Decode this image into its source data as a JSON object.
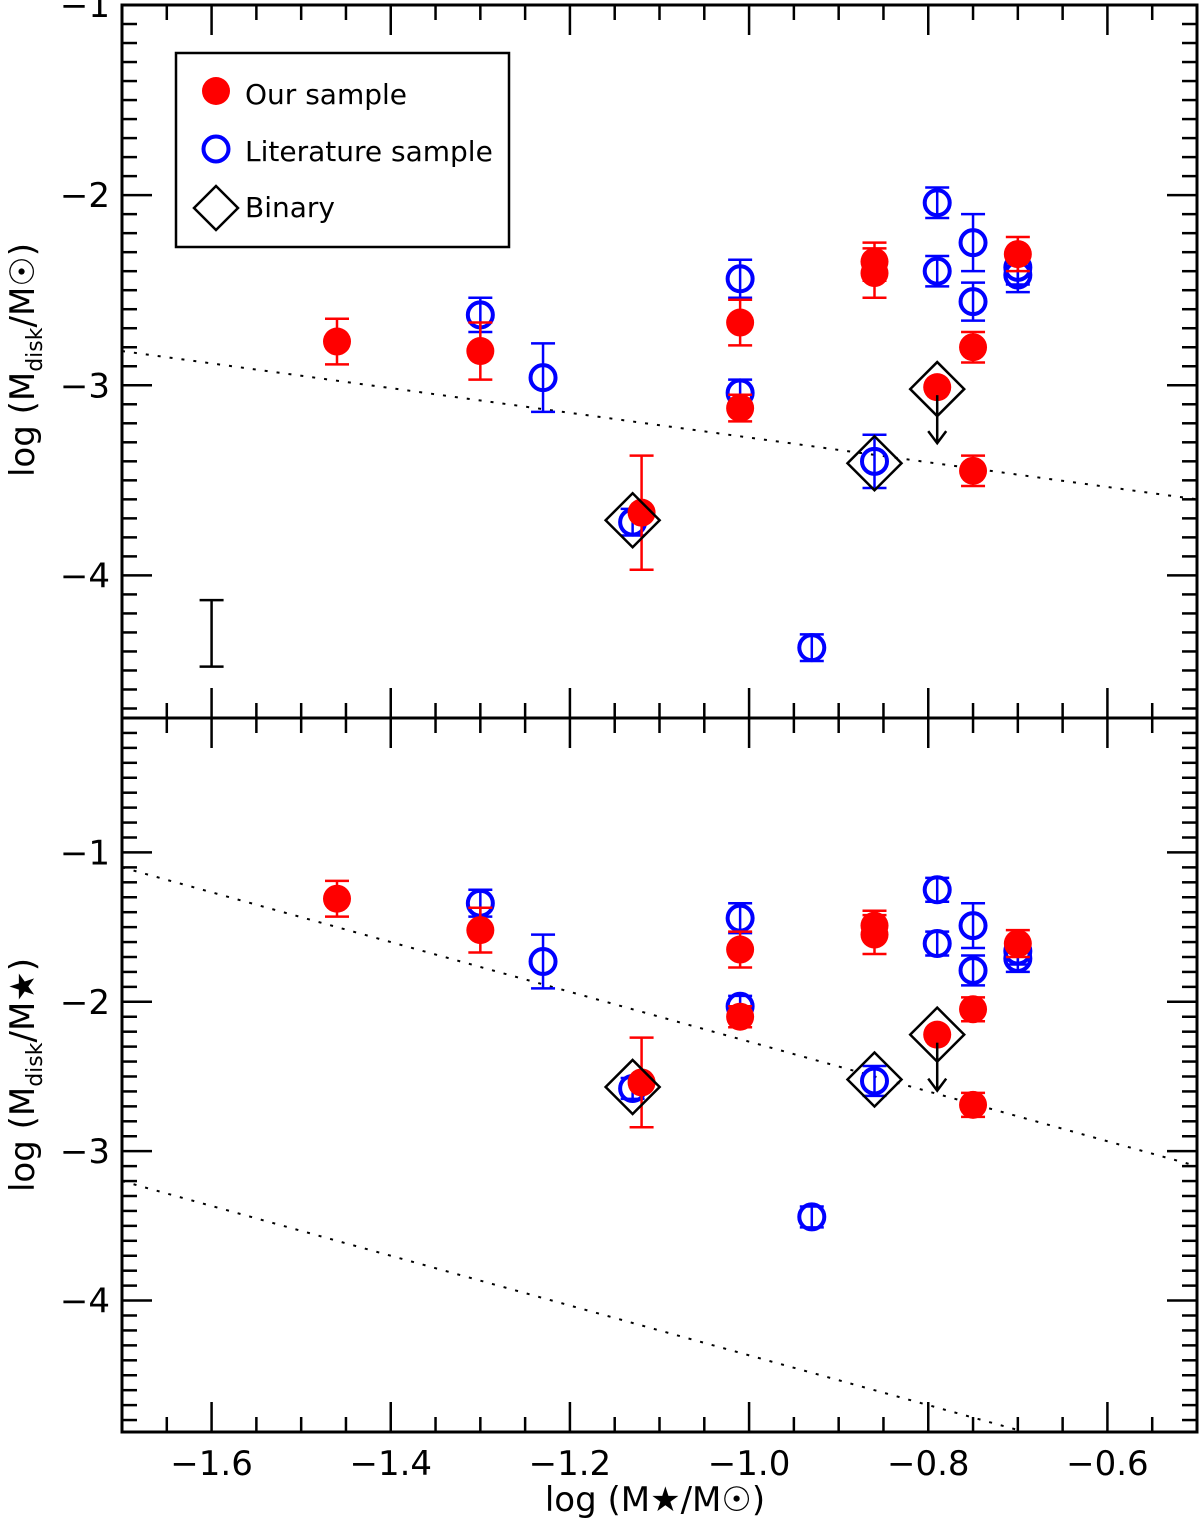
{
  "colors": {
    "our": "#ff0000",
    "lit": "#0000ff",
    "binary": "#000000",
    "frame": "#000000"
  },
  "chart_data": [
    {
      "id": "top",
      "type": "scatter",
      "title": "",
      "xlabel": "log (M★/M☉)",
      "ylabel_parts": {
        "main": "log (M",
        "sub": "disk",
        "tail": "/M☉)"
      },
      "xlim": [
        -1.7,
        -0.5
      ],
      "ylim": [
        -4.75,
        -1.0
      ],
      "yticks": [
        -4,
        -3,
        -2,
        -1
      ],
      "ytick_labels": [
        "−4",
        "−3",
        "−2",
        "−1"
      ],
      "legend": [
        "Our sample",
        "Literature sample",
        "Binary"
      ],
      "series": [
        {
          "name": "Our sample",
          "points": [
            {
              "x": -1.46,
              "y": -2.77,
              "err": 0.12
            },
            {
              "x": -1.3,
              "y": -2.82,
              "err": 0.15
            },
            {
              "x": -1.12,
              "y": -3.67,
              "err": 0.3
            },
            {
              "x": -1.01,
              "y": -2.67,
              "err": 0.12
            },
            {
              "x": -1.01,
              "y": -3.12,
              "err": 0.07
            },
            {
              "x": -0.86,
              "y": -2.35,
              "err": 0.1
            },
            {
              "x": -0.86,
              "y": -2.41,
              "err": 0.13
            },
            {
              "x": -0.79,
              "y": -3.01,
              "err": 0.0,
              "upper_limit": true
            },
            {
              "x": -0.75,
              "y": -2.8,
              "err": 0.08
            },
            {
              "x": -0.75,
              "y": -3.45,
              "err": 0.08
            },
            {
              "x": -0.7,
              "y": -2.31,
              "err": 0.09
            }
          ]
        },
        {
          "name": "Literature sample",
          "points": [
            {
              "x": -1.3,
              "y": -2.63,
              "err": 0.09
            },
            {
              "x": -1.23,
              "y": -2.96,
              "err": 0.18
            },
            {
              "x": -1.13,
              "y": -3.72,
              "err": 0.07
            },
            {
              "x": -1.01,
              "y": -2.44,
              "err": 0.1
            },
            {
              "x": -1.01,
              "y": -3.04,
              "err": 0.07
            },
            {
              "x": -0.93,
              "y": -4.38,
              "err": 0.07
            },
            {
              "x": -0.86,
              "y": -3.4,
              "err": 0.14
            },
            {
              "x": -0.79,
              "y": -2.04,
              "err": 0.08
            },
            {
              "x": -0.79,
              "y": -2.4,
              "err": 0.08
            },
            {
              "x": -0.75,
              "y": -2.25,
              "err": 0.15
            },
            {
              "x": -0.75,
              "y": -2.56,
              "err": 0.1
            },
            {
              "x": -0.7,
              "y": -2.38,
              "err": 0.09
            },
            {
              "x": -0.7,
              "y": -2.42,
              "err": 0.09
            }
          ]
        }
      ],
      "binaries": [
        {
          "x": -1.13,
          "y": -3.71
        },
        {
          "x": -0.86,
          "y": -3.41
        },
        {
          "x": -0.79,
          "y": -3.02
        }
      ],
      "dotted_lines": [
        {
          "x1": -1.7,
          "y1": -2.82,
          "x2": -0.5,
          "y2": -3.6
        }
      ],
      "typical_error": {
        "x": -1.6,
        "y_low": -4.48,
        "y_high": -4.13
      }
    },
    {
      "id": "bottom",
      "type": "scatter",
      "title": "",
      "xlabel": "log (M★/M☉)",
      "ylabel_parts": {
        "main": "log (M",
        "sub": "disk",
        "tail": "/M★)"
      },
      "xlim": [
        -1.7,
        -0.5
      ],
      "ylim": [
        -4.88,
        -0.1
      ],
      "yticks": [
        -4,
        -3,
        -2,
        -1
      ],
      "ytick_labels": [
        "−4",
        "−3",
        "−2",
        "−1"
      ],
      "xticks": [
        -1.6,
        -1.4,
        -1.2,
        -1.0,
        -0.8,
        -0.6
      ],
      "xtick_labels": [
        "−1.6",
        "−1.4",
        "−1.2",
        "−1.0",
        "−0.8",
        "−0.6"
      ],
      "series": [
        {
          "name": "Our sample",
          "points": [
            {
              "x": -1.46,
              "y": -1.31,
              "err": 0.12
            },
            {
              "x": -1.3,
              "y": -1.52,
              "err": 0.15
            },
            {
              "x": -1.12,
              "y": -2.54,
              "err": 0.3
            },
            {
              "x": -1.01,
              "y": -1.65,
              "err": 0.12
            },
            {
              "x": -1.01,
              "y": -2.1,
              "err": 0.07
            },
            {
              "x": -0.86,
              "y": -1.49,
              "err": 0.1
            },
            {
              "x": -0.86,
              "y": -1.55,
              "err": 0.13
            },
            {
              "x": -0.79,
              "y": -2.22,
              "err": 0.0,
              "upper_limit": true
            },
            {
              "x": -0.75,
              "y": -2.05,
              "err": 0.08
            },
            {
              "x": -0.75,
              "y": -2.69,
              "err": 0.08
            },
            {
              "x": -0.7,
              "y": -1.61,
              "err": 0.09
            }
          ]
        },
        {
          "name": "Literature sample",
          "points": [
            {
              "x": -1.3,
              "y": -1.34,
              "err": 0.09
            },
            {
              "x": -1.23,
              "y": -1.73,
              "err": 0.18
            },
            {
              "x": -1.13,
              "y": -2.58,
              "err": 0.07
            },
            {
              "x": -1.01,
              "y": -1.44,
              "err": 0.1
            },
            {
              "x": -1.01,
              "y": -2.03,
              "err": 0.07
            },
            {
              "x": -0.93,
              "y": -3.44,
              "err": 0.07
            },
            {
              "x": -0.86,
              "y": -2.53,
              "err": 0.1
            },
            {
              "x": -0.79,
              "y": -1.25,
              "err": 0.08
            },
            {
              "x": -0.79,
              "y": -1.61,
              "err": 0.08
            },
            {
              "x": -0.75,
              "y": -1.49,
              "err": 0.15
            },
            {
              "x": -0.75,
              "y": -1.79,
              "err": 0.1
            },
            {
              "x": -0.7,
              "y": -1.66,
              "err": 0.09
            },
            {
              "x": -0.7,
              "y": -1.71,
              "err": 0.09
            }
          ]
        }
      ],
      "binaries": [
        {
          "x": -1.13,
          "y": -2.57
        },
        {
          "x": -0.86,
          "y": -2.52
        },
        {
          "x": -0.79,
          "y": -2.22
        }
      ],
      "dotted_lines": [
        {
          "x1": -1.7,
          "y1": -1.1,
          "x2": -0.5,
          "y2": -3.1
        },
        {
          "x1": -1.7,
          "y1": -3.2,
          "x2": -0.5,
          "y2": -5.2
        }
      ]
    }
  ]
}
